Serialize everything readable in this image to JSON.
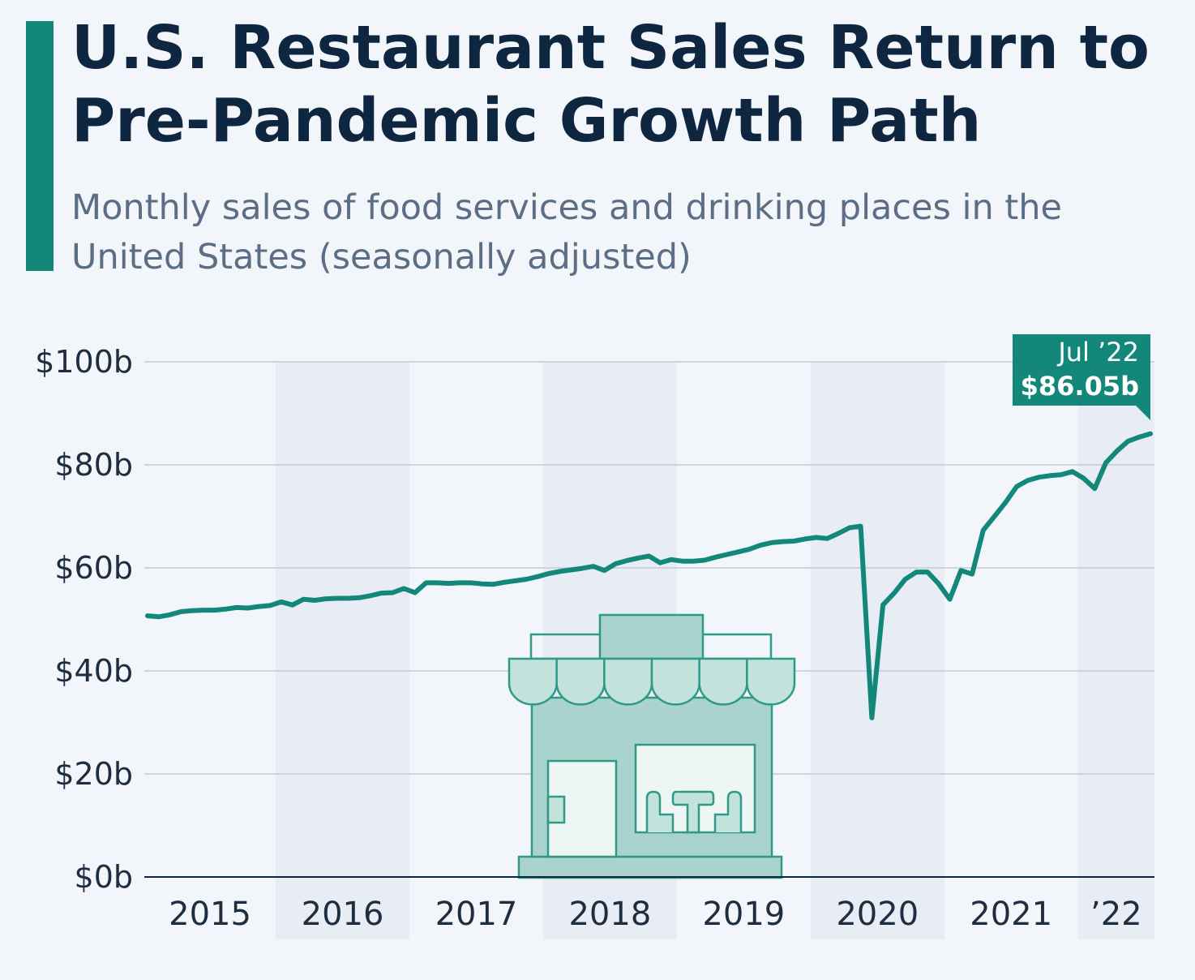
{
  "title": "U.S. Restaurant Sales Return to Pre-Pandemic Growth Path",
  "subtitle": "Monthly sales of food services and drinking places in the United States (seasonally adjusted)",
  "colors": {
    "accent": "#13887a",
    "title": "#0f2640",
    "subtitle": "#5c6d86",
    "band": "#e7ecf5",
    "grid": "#c3cad6",
    "icon_fill": "#a9d3cc",
    "icon_stroke": "#2f9a88"
  },
  "illustration": {
    "icon": "restaurant-storefront-icon"
  },
  "chart_data": {
    "type": "line",
    "title": "U.S. Restaurant Sales Return to Pre-Pandemic Growth Path",
    "subtitle": "Monthly sales of food services and drinking places in the United States (seasonally adjusted)",
    "xlabel": "",
    "ylabel": "",
    "x_start": "2015-01",
    "x_end": "2022-07",
    "x_tick_labels": [
      "2015",
      "2016",
      "2017",
      "2018",
      "2019",
      "2020",
      "2021",
      "’22"
    ],
    "ylim": [
      0,
      100
    ],
    "y_ticks": [
      0,
      20,
      40,
      60,
      80,
      100
    ],
    "y_tick_labels": [
      "$0b",
      "$20b",
      "$40b",
      "$60b",
      "$80b",
      "$100b"
    ],
    "grid": true,
    "alternating_year_bands": true,
    "series": [
      {
        "values": [
          50.7,
          50.5,
          50.9,
          51.5,
          51.7,
          51.8,
          51.8,
          52.0,
          52.3,
          52.2,
          52.5,
          52.7,
          53.4,
          52.8,
          53.9,
          53.7,
          54.0,
          54.1,
          54.1,
          54.2,
          54.6,
          55.1,
          55.2,
          56.0,
          55.2,
          57.1,
          57.1,
          57.0,
          57.1,
          57.1,
          56.9,
          56.8,
          57.2,
          57.5,
          57.8,
          58.3,
          58.9,
          59.3,
          59.6,
          59.9,
          60.3,
          59.5,
          60.8,
          61.4,
          61.9,
          62.3,
          61.0,
          61.6,
          61.3,
          61.3,
          61.5,
          62.1,
          62.6,
          63.1,
          63.6,
          64.4,
          64.9,
          65.1,
          65.2,
          65.6,
          65.9,
          65.7,
          66.7,
          67.8,
          68.1,
          30.9,
          52.8,
          55.1,
          57.8,
          59.2,
          59.2,
          56.9,
          53.9,
          59.5,
          58.8,
          67.3,
          70.0,
          72.7,
          75.8,
          77.0,
          77.6,
          77.9,
          78.1,
          78.7,
          77.4,
          75.4,
          80.4,
          82.7,
          84.6,
          85.4,
          86.05
        ]
      }
    ],
    "annotation": {
      "label": "Jul ’22",
      "value_label": "$86.05b",
      "value": 86.05
    }
  }
}
